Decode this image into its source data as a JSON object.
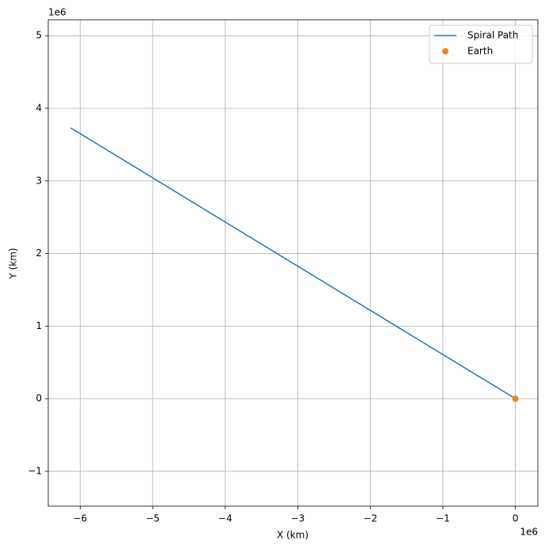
{
  "chart_data": {
    "type": "line",
    "x_label": "X (km)",
    "y_label": "Y (km)",
    "x_offset_label": "1e6",
    "y_offset_label": "1e6",
    "series": [
      {
        "name": "Spiral Path",
        "type": "line",
        "color": "#1f77b4",
        "x": [
          -6.13,
          0
        ],
        "values": [
          3.73,
          0
        ]
      },
      {
        "name": "Earth",
        "type": "scatter",
        "color": "#ff7f0e",
        "x": [
          0
        ],
        "values": [
          0
        ]
      }
    ],
    "xlim": [
      -6.44,
      0.31
    ],
    "ylim": [
      -1.48,
      5.22
    ],
    "xticks": [
      {
        "value": -6,
        "label": "−6"
      },
      {
        "value": -5,
        "label": "−5"
      },
      {
        "value": -4,
        "label": "−4"
      },
      {
        "value": -3,
        "label": "−3"
      },
      {
        "value": -2,
        "label": "−2"
      },
      {
        "value": -1,
        "label": "−1"
      },
      0
    ],
    "yticks": [
      {
        "value": -1,
        "label": "−1"
      },
      0,
      1,
      2,
      3,
      4,
      5
    ],
    "grid": true,
    "legend": "upper right"
  }
}
